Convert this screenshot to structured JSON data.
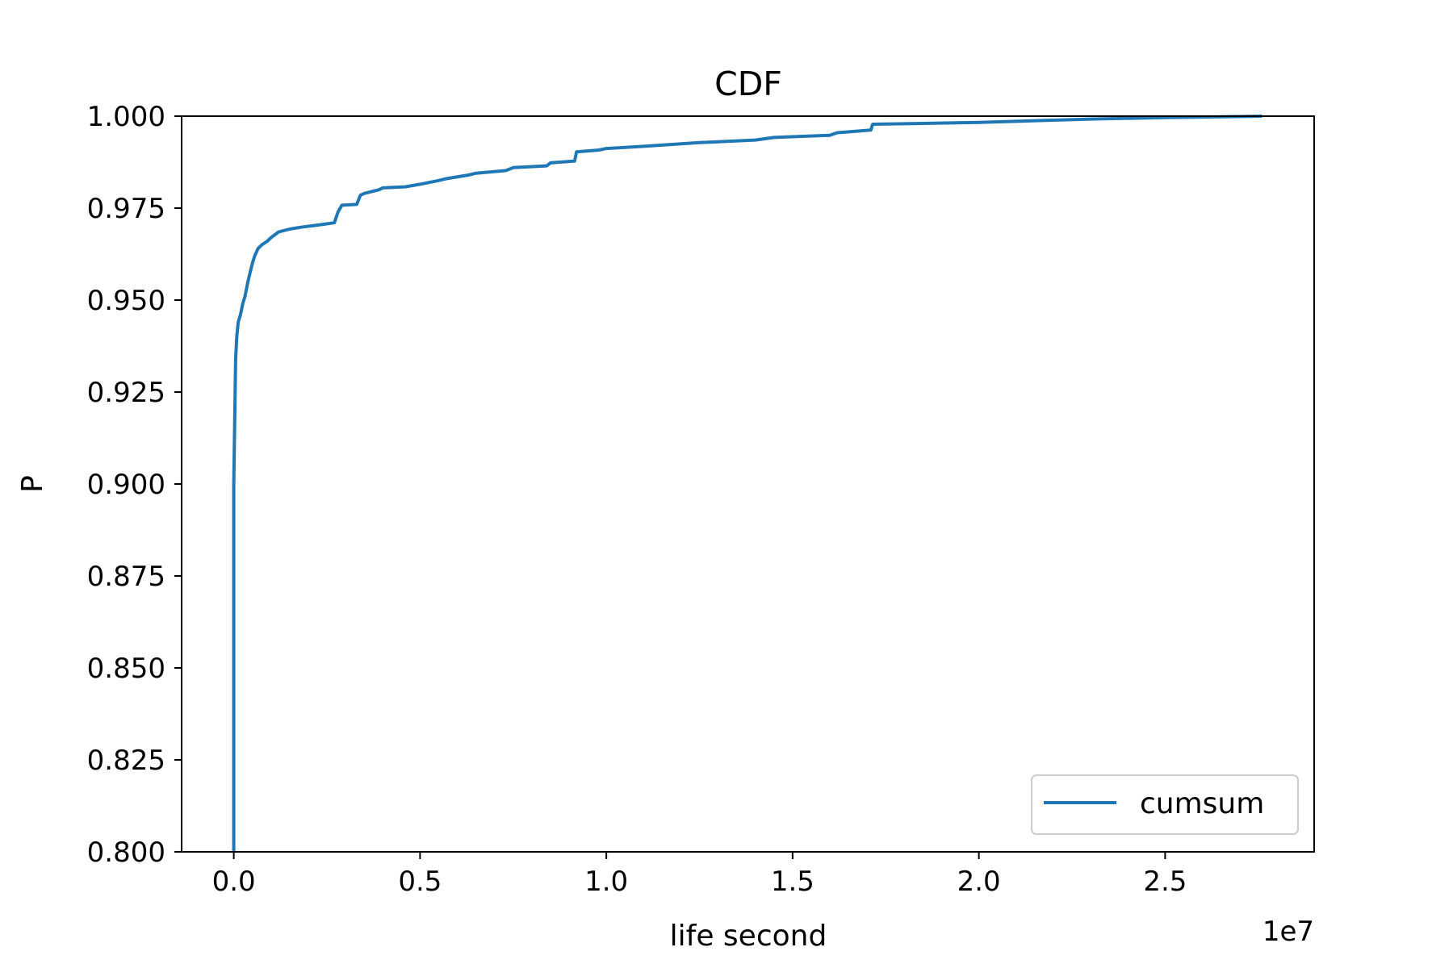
{
  "chart_data": {
    "type": "line",
    "title": "CDF",
    "xlabel": "life second",
    "ylabel": "P",
    "x_offset_label": "1e7",
    "xlim": [
      -1400000,
      29000000
    ],
    "ylim": [
      0.8,
      1.0
    ],
    "x_ticks": [
      0,
      5000000,
      10000000,
      15000000,
      20000000,
      25000000
    ],
    "x_tick_labels": [
      "0.0",
      "0.5",
      "1.0",
      "1.5",
      "2.0",
      "2.5"
    ],
    "y_ticks": [
      0.8,
      0.825,
      0.85,
      0.875,
      0.9,
      0.925,
      0.95,
      0.975,
      1.0
    ],
    "y_tick_labels": [
      "0.800",
      "0.825",
      "0.850",
      "0.875",
      "0.900",
      "0.925",
      "0.950",
      "0.975",
      "1.000"
    ],
    "grid": false,
    "legend_position": "lower-right",
    "series": [
      {
        "name": "cumsum",
        "color": "#1f77b4",
        "x": [
          0,
          0,
          50000,
          80000,
          120000,
          180000,
          240000,
          300000,
          380000,
          450000,
          500000,
          560000,
          650000,
          750000,
          900000,
          1000000,
          1200000,
          1500000,
          1800000,
          2200000,
          2700000,
          2800000,
          2900000,
          3300000,
          3400000,
          3500000,
          3900000,
          4000000,
          4600000,
          5000000,
          5500000,
          5700000,
          6300000,
          6500000,
          7300000,
          7500000,
          8400000,
          8500000,
          9150000,
          9200000,
          9800000,
          10000000,
          11000000,
          12500000,
          14000000,
          14500000,
          16000000,
          16200000,
          17100000,
          17150000,
          20000000,
          23000000,
          25000000,
          27600000
        ],
        "y": [
          0.8,
          0.9,
          0.934,
          0.94,
          0.944,
          0.946,
          0.949,
          0.951,
          0.955,
          0.958,
          0.96,
          0.962,
          0.964,
          0.965,
          0.966,
          0.967,
          0.9685,
          0.9693,
          0.9698,
          0.9703,
          0.971,
          0.974,
          0.9758,
          0.976,
          0.9785,
          0.979,
          0.98,
          0.9805,
          0.9808,
          0.9815,
          0.9825,
          0.983,
          0.984,
          0.9845,
          0.9852,
          0.986,
          0.9865,
          0.9873,
          0.9878,
          0.9903,
          0.9908,
          0.9912,
          0.9918,
          0.9928,
          0.9935,
          0.9942,
          0.9948,
          0.9955,
          0.9962,
          0.9978,
          0.9983,
          0.9992,
          0.9996,
          1.0
        ]
      }
    ]
  }
}
